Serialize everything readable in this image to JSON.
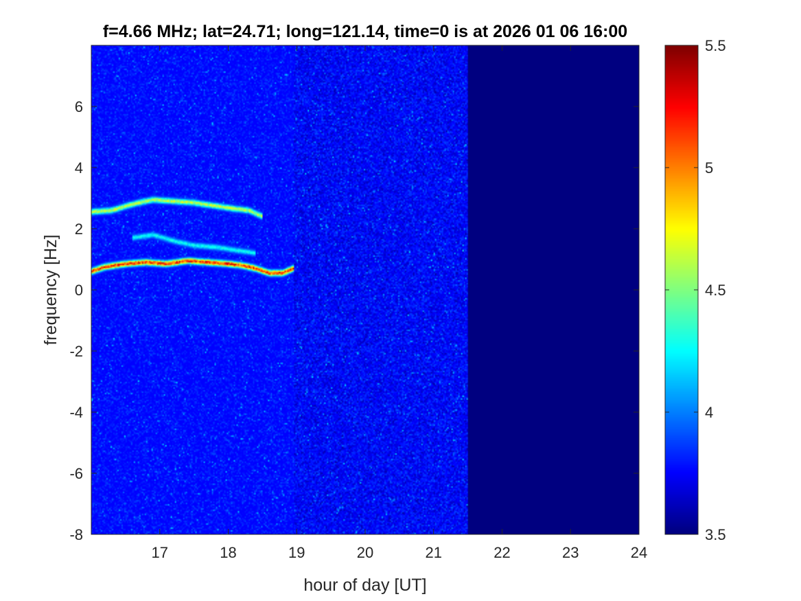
{
  "chart_data": {
    "type": "heatmap",
    "title": "f=4.66 MHz;  lat=24.71; long=121.14, time=0 is at 2026 01 06 16:00",
    "xlabel": "hour of day [UT]",
    "ylabel": "frequency [Hz]",
    "xlim": [
      16,
      24
    ],
    "ylim": [
      -8,
      8
    ],
    "xticks": [
      17,
      18,
      19,
      20,
      21,
      22,
      23,
      24
    ],
    "yticks": [
      -8,
      -6,
      -4,
      -2,
      0,
      2,
      4,
      6
    ],
    "colorbar": {
      "colormap": "jet",
      "clim": [
        3.5,
        5.5
      ],
      "ticks": [
        3.5,
        4,
        4.5,
        5,
        5.5
      ]
    },
    "data_end_hour": 21.5,
    "background_level": 3.75,
    "traces": [
      {
        "description_level": 5.3,
        "points": [
          [
            16.0,
            0.6
          ],
          [
            16.2,
            0.75
          ],
          [
            16.5,
            0.85
          ],
          [
            16.8,
            0.9
          ],
          [
            17.1,
            0.85
          ],
          [
            17.4,
            0.95
          ],
          [
            17.7,
            0.9
          ],
          [
            18.0,
            0.85
          ],
          [
            18.2,
            0.8
          ],
          [
            18.4,
            0.7
          ],
          [
            18.6,
            0.55
          ],
          [
            18.8,
            0.55
          ],
          [
            18.95,
            0.7
          ]
        ]
      },
      {
        "description_level": 4.7,
        "points": [
          [
            16.0,
            2.55
          ],
          [
            16.3,
            2.6
          ],
          [
            16.6,
            2.8
          ],
          [
            16.9,
            2.95
          ],
          [
            17.2,
            2.9
          ],
          [
            17.5,
            2.85
          ],
          [
            17.8,
            2.75
          ],
          [
            18.1,
            2.65
          ],
          [
            18.3,
            2.6
          ],
          [
            18.5,
            2.4
          ]
        ]
      },
      {
        "description_level": 4.3,
        "points": [
          [
            16.6,
            1.7
          ],
          [
            16.9,
            1.8
          ],
          [
            17.2,
            1.6
          ],
          [
            17.5,
            1.45
          ],
          [
            17.8,
            1.4
          ],
          [
            18.1,
            1.3
          ],
          [
            18.4,
            1.2
          ]
        ]
      }
    ]
  }
}
